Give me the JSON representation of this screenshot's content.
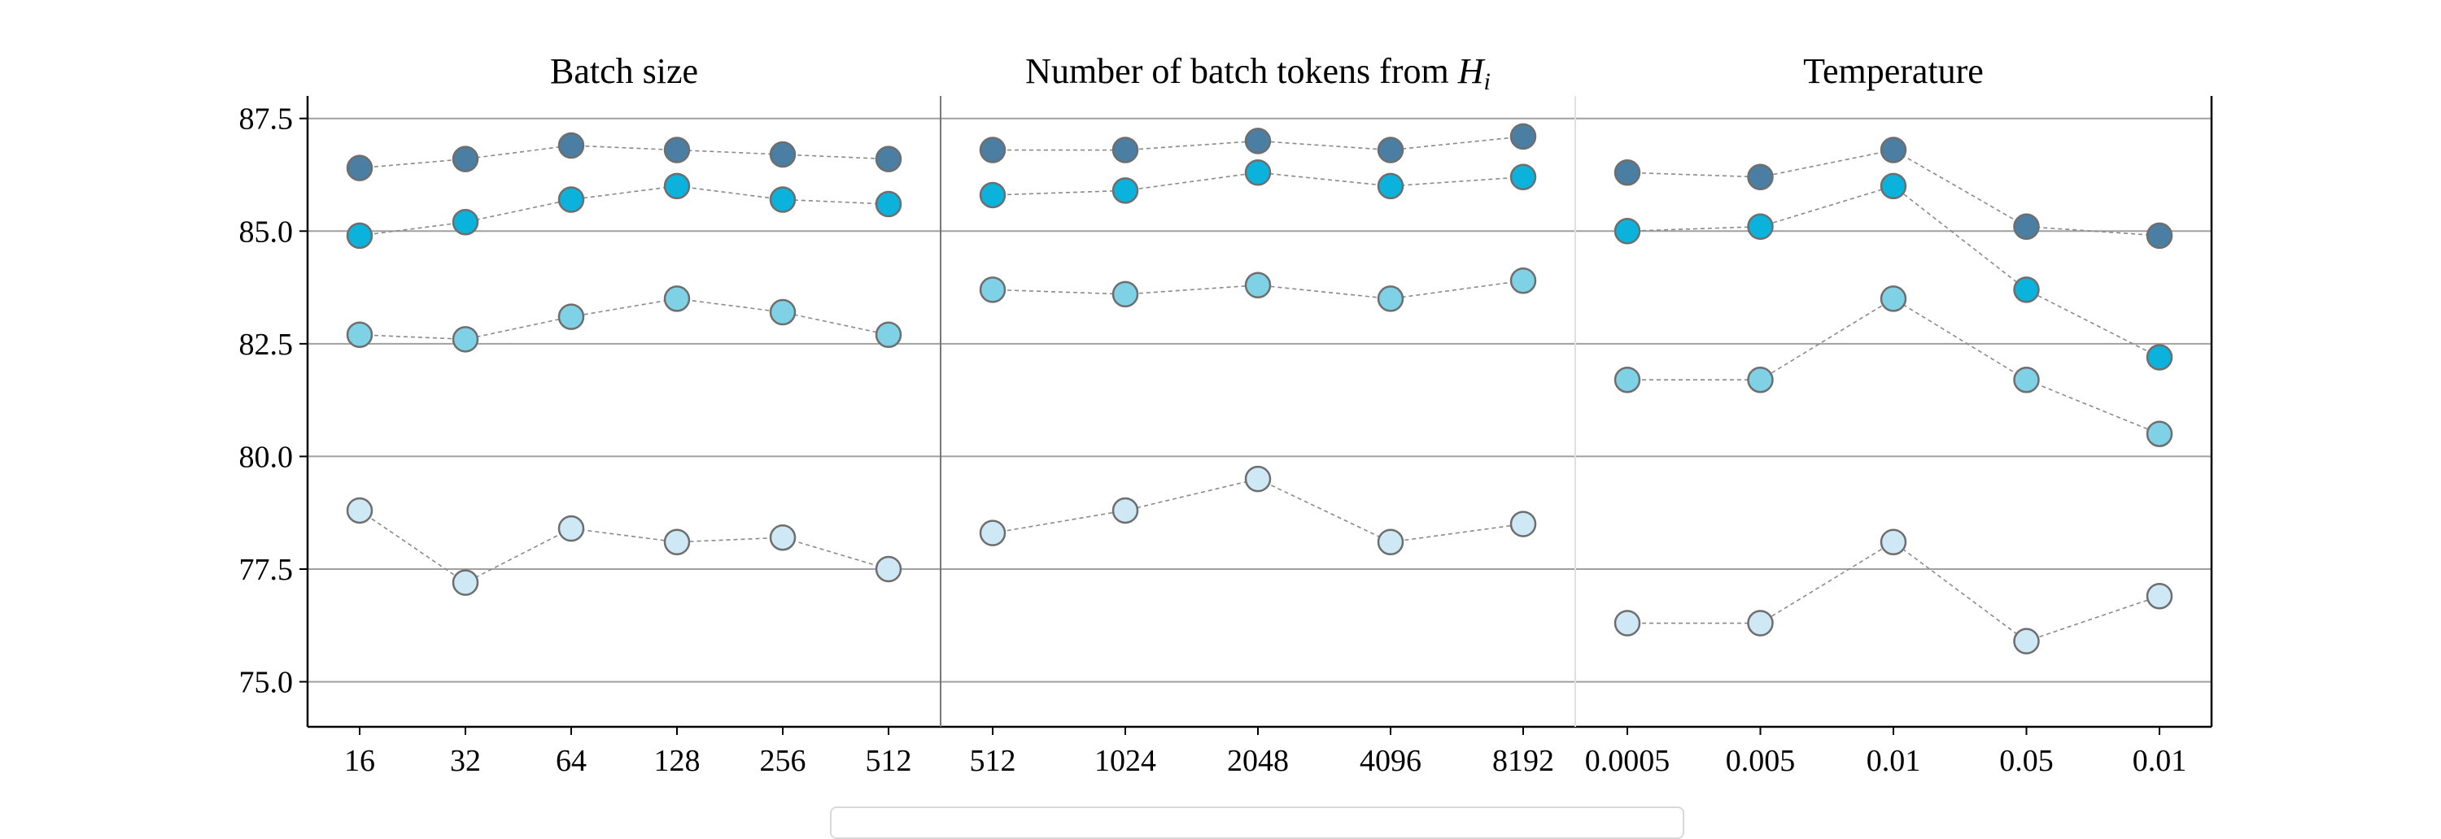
{
  "chart_data": {
    "type": "scatter",
    "ylim": [
      74.0,
      88.0
    ],
    "y_ticks": [
      "75.0",
      "77.5",
      "80.0",
      "82.5",
      "85.0",
      "87.5"
    ],
    "y_tick_values": [
      75.0,
      77.5,
      80.0,
      82.5,
      85.0,
      87.5
    ],
    "grid": true,
    "legend": "bottom",
    "series_colors": [
      "#4a7fa3",
      "#0bb3dc",
      "#7fd2e6",
      "#cfe8f5"
    ],
    "panels": [
      {
        "title": "Batch size",
        "title_math": "",
        "categories": [
          "16",
          "32",
          "64",
          "128",
          "256",
          "512"
        ],
        "series": [
          {
            "values": [
              86.4,
              86.6,
              86.9,
              86.8,
              86.7,
              86.6
            ]
          },
          {
            "values": [
              84.9,
              85.2,
              85.7,
              86.0,
              85.7,
              85.6
            ]
          },
          {
            "values": [
              82.7,
              82.6,
              83.1,
              83.5,
              83.2,
              82.7
            ]
          },
          {
            "values": [
              78.8,
              77.2,
              78.4,
              78.1,
              78.2,
              77.5
            ]
          }
        ]
      },
      {
        "title": "Number of batch tokens from ",
        "title_math": "H",
        "title_math_sub": "i",
        "categories": [
          "512",
          "1024",
          "2048",
          "4096",
          "8192"
        ],
        "series": [
          {
            "values": [
              86.8,
              86.8,
              87.0,
              86.8,
              87.1
            ]
          },
          {
            "values": [
              85.8,
              85.9,
              86.3,
              86.0,
              86.2
            ]
          },
          {
            "values": [
              83.7,
              83.6,
              83.8,
              83.5,
              83.9
            ]
          },
          {
            "values": [
              78.3,
              78.8,
              79.5,
              78.1,
              78.5
            ]
          }
        ]
      },
      {
        "title": "Temperature",
        "title_math": "",
        "categories": [
          "0.0005",
          "0.005",
          "0.01",
          "0.05",
          "0.01"
        ],
        "series": [
          {
            "values": [
              86.3,
              86.2,
              86.8,
              85.1,
              84.9
            ]
          },
          {
            "values": [
              85.0,
              85.1,
              86.0,
              83.7,
              82.2
            ]
          },
          {
            "values": [
              81.7,
              81.7,
              83.5,
              81.7,
              80.5
            ]
          },
          {
            "values": [
              76.3,
              76.3,
              78.1,
              75.9,
              76.9
            ]
          }
        ]
      }
    ]
  }
}
